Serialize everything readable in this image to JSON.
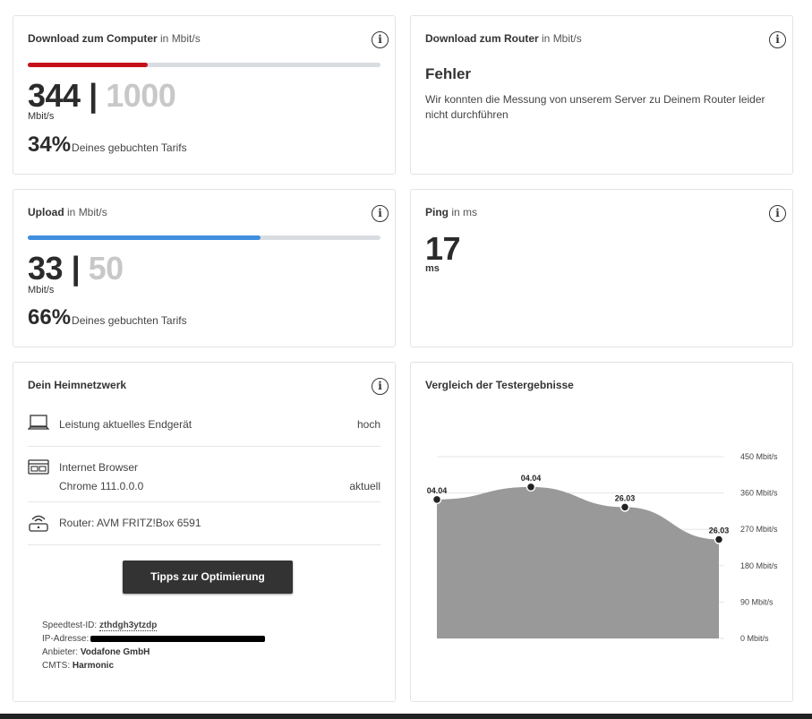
{
  "download_computer": {
    "title_bold": "Download zum Computer",
    "title_unit": "in Mbit/s",
    "value": "344",
    "separator": "|",
    "max": "1000",
    "unit": "Mbit/s",
    "percent": "34%",
    "percent_text": "Deines gebuchten Tarifs",
    "bar_fraction": 0.34,
    "bar_color": "#c6111a"
  },
  "download_router": {
    "title_bold": "Download zum Router",
    "title_unit": "in Mbit/s",
    "error_title": "Fehler",
    "error_message": "Wir konnten die Messung von unserem Server zu Deinem Router leider nicht durchführen"
  },
  "upload": {
    "title_bold": "Upload",
    "title_unit": "in Mbit/s",
    "value": "33",
    "separator": "|",
    "max": "50",
    "unit": "Mbit/s",
    "percent": "66%",
    "percent_text": "Deines gebuchten Tarifs",
    "bar_fraction": 0.66,
    "bar_color": "#3f8fe0"
  },
  "ping": {
    "title_bold": "Ping",
    "title_unit": "in ms",
    "value": "17",
    "unit": "ms"
  },
  "network": {
    "title": "Dein Heimnetzwerk",
    "rows": [
      {
        "icon": "laptop-icon",
        "label": "Leistung aktuelles Endgerät",
        "value": "hoch"
      },
      {
        "icon": "browser-icon",
        "label": "Internet Browser",
        "sublabel": "Chrome 111.0.0.0",
        "value": "aktuell"
      },
      {
        "icon": "router-icon",
        "label": "Router: AVM FRITZ!Box 6591"
      }
    ],
    "button": "Tipps zur Optimierung",
    "speedtest_id_label": "Speedtest-ID:",
    "speedtest_id": "zthdgh3ytzdp",
    "ip_label": "IP-Adresse:",
    "provider_label": "Anbieter:",
    "provider": "Vodafone GmbH",
    "cmts_label": "CMTS:",
    "cmts": "Harmonic"
  },
  "chart_card": {
    "title": "Vergleich der Testergebnisse"
  },
  "chart_data": {
    "type": "area",
    "title": "Vergleich der Testergebnisse",
    "x": [
      "04.04",
      "04.04",
      "26.03",
      "26.03"
    ],
    "values": [
      344,
      375,
      325,
      245
    ],
    "ylim": [
      0,
      450
    ],
    "yticks": [
      "0 Mbit/s",
      "90 Mbit/s",
      "180 Mbit/s",
      "270 Mbit/s",
      "360 Mbit/s",
      "450 Mbit/s"
    ],
    "ytick_values": [
      0,
      90,
      180,
      270,
      360,
      450
    ],
    "grid": true,
    "fill_color": "#999999"
  }
}
